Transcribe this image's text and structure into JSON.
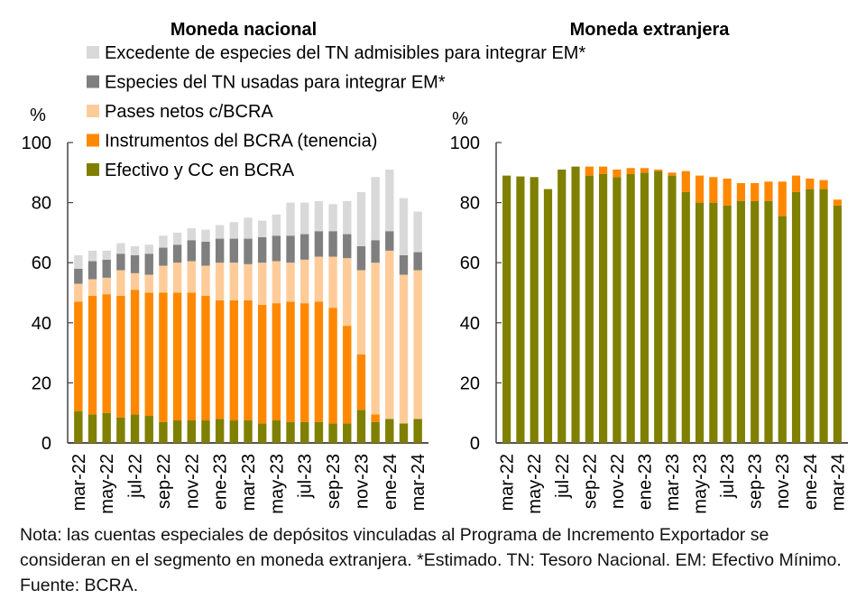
{
  "chart_data": [
    {
      "type": "bar",
      "stacked": true,
      "title": "Moneda nacional",
      "ylabel": "%",
      "xlabel": "",
      "ylim": [
        0,
        100
      ],
      "yticks": [
        0,
        20,
        40,
        60,
        80,
        100
      ],
      "categories": [
        "mar-22",
        "abr-22",
        "may-22",
        "jun-22",
        "jul-22",
        "ago-22",
        "sep-22",
        "oct-22",
        "nov-22",
        "dic-22",
        "ene-23",
        "feb-23",
        "mar-23",
        "abr-23",
        "may-23",
        "jun-23",
        "jul-23",
        "ago-23",
        "sep-23",
        "oct-23",
        "nov-23",
        "dic-23",
        "ene-24",
        "feb-24",
        "mar-24"
      ],
      "xtick_labels": [
        "mar-22",
        "may-22",
        "jul-22",
        "sep-22",
        "nov-22",
        "ene-23",
        "mar-23",
        "may-23",
        "jul-23",
        "sep-23",
        "nov-23",
        "ene-24",
        "mar-24"
      ],
      "legend_position": "top",
      "series": [
        {
          "name": "Efectivo y CC en BCRA",
          "color": "#7f7f00",
          "values": [
            10.5,
            9.5,
            10,
            8.5,
            9.5,
            9,
            7,
            7.5,
            7.5,
            7.5,
            8,
            7.5,
            7.5,
            6.5,
            7.5,
            7,
            7,
            7,
            6.5,
            6.5,
            11,
            7,
            8,
            6.5,
            8
          ]
        },
        {
          "name": "Instrumentos del BCRA (tenencia)",
          "color": "#ff8800",
          "values": [
            36.5,
            39.5,
            39.5,
            40.5,
            41.5,
            41,
            43,
            42.5,
            42.5,
            41.5,
            39.5,
            40,
            40,
            39.5,
            39,
            40,
            39.5,
            40,
            38.5,
            32.5,
            18.5,
            2.5,
            0,
            0,
            0
          ]
        },
        {
          "name": "Pases netos c/BCRA",
          "color": "#ffcc99",
          "values": [
            6,
            5.5,
            5.5,
            8.5,
            5.5,
            6,
            9,
            10,
            10.5,
            10,
            12.5,
            12.5,
            12,
            14,
            14,
            13,
            14.5,
            15,
            17,
            22.5,
            28,
            50.5,
            56,
            49.5,
            49.5
          ]
        },
        {
          "name": "Especies del TN usadas para integrar EM*",
          "color": "#7f7f7f",
          "values": [
            5,
            6,
            6,
            5.5,
            6,
            7,
            6,
            6,
            7,
            8,
            8,
            8,
            8.5,
            8.5,
            8.5,
            9,
            8.5,
            8.5,
            8.5,
            8,
            8,
            7.5,
            6.5,
            6.5,
            6
          ]
        },
        {
          "name": "Excedente de especies del TN admisibles para integrar EM*",
          "color": "#d9d9d9",
          "values": [
            4.5,
            3.5,
            3,
            3.5,
            3,
            3,
            4,
            4,
            4,
            4,
            4.5,
            5.5,
            7,
            5.5,
            7,
            11,
            10.5,
            10,
            9,
            11,
            18,
            21,
            20.5,
            19,
            13.5
          ]
        }
      ]
    },
    {
      "type": "bar",
      "stacked": true,
      "title": "Moneda extranjera",
      "ylabel": "%",
      "xlabel": "",
      "ylim": [
        0,
        100
      ],
      "yticks": [
        0,
        20,
        40,
        60,
        80,
        100
      ],
      "categories": [
        "mar-22",
        "abr-22",
        "may-22",
        "jun-22",
        "jul-22",
        "ago-22",
        "sep-22",
        "oct-22",
        "nov-22",
        "dic-22",
        "ene-23",
        "feb-23",
        "mar-23",
        "abr-23",
        "may-23",
        "jun-23",
        "jul-23",
        "ago-23",
        "sep-23",
        "oct-23",
        "nov-23",
        "dic-23",
        "ene-24",
        "feb-24",
        "mar-24"
      ],
      "xtick_labels": [
        "mar-22",
        "may-22",
        "jul-22",
        "sep-22",
        "nov-22",
        "ene-23",
        "mar-23",
        "may-23",
        "jul-23",
        "sep-23",
        "nov-23",
        "ene-24",
        "mar-24"
      ],
      "series": [
        {
          "name": "Efectivo y CC en BCRA",
          "color": "#7f7f00",
          "values": [
            89,
            88.7,
            88.5,
            84.5,
            91,
            92,
            89,
            89.5,
            88.5,
            89.5,
            90,
            90.5,
            89,
            83.5,
            80,
            80,
            79,
            80.5,
            80.5,
            80.5,
            75.5,
            83.5,
            84.5,
            84.5,
            79
          ]
        },
        {
          "name": "Instrumentos del BCRA (tenencia)",
          "color": "#ff8800",
          "values": [
            0,
            0,
            0,
            0,
            0,
            0,
            3,
            2.5,
            2.5,
            2,
            1.5,
            0.5,
            1,
            7,
            9,
            8.5,
            9,
            6,
            6,
            6.5,
            11.5,
            5.5,
            3.5,
            3,
            2
          ]
        }
      ]
    }
  ],
  "legend": [
    {
      "label": "Excedente de especies del TN admisibles para integrar EM*",
      "color": "#d9d9d9"
    },
    {
      "label": "Especies del TN usadas para integrar EM*",
      "color": "#7f7f7f"
    },
    {
      "label": "Pases netos c/BCRA",
      "color": "#ffcc99"
    },
    {
      "label": "Instrumentos del BCRA (tenencia)",
      "color": "#ff8800"
    },
    {
      "label": "Efectivo y CC en BCRA",
      "color": "#7f7f00"
    }
  ],
  "note": "Nota: las cuentas especiales de depósitos vinculadas al Programa de Incremento Exportador se consideran en el segmento en moneda extranjera. *Estimado. TN: Tesoro Nacional. EM: Efectivo Mínimo. Fuente: BCRA."
}
